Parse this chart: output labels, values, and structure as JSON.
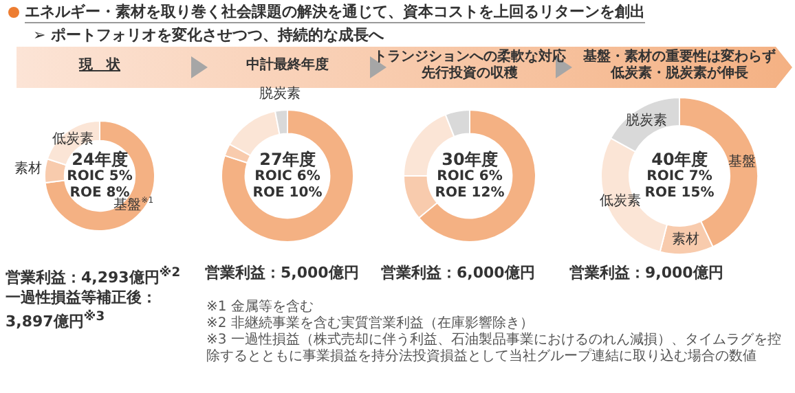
{
  "chart_data": [
    {
      "type": "other",
      "title": "エネルギー・素材を取り巻く社会課題の解決を通じて、資本コストを上回るリターンを創出",
      "subtitle": "➢ ポートフォリオを変化させつつ、持続的な成長へ",
      "annotations": [
        "※1 金属等を含む",
        "※2 非継続事業を含む実質営業利益（在庫影響除き）",
        "※3 一過性損益（株式売却に伴う利益、石油製品事業におけるのれん減損）、タイムラグを控除するとともに事業損益を持分法投資損益として当社グループ連結に取り込む場合の数値"
      ]
    },
    {
      "type": "donut",
      "title": "24年度",
      "subtitle": "現　状",
      "categories": [
        "基盤$^{※1}$",
        "素材",
        "低炭素"
      ],
      "values": [
        73,
        7,
        20
      ],
      "colors": [
        "#f4b183",
        "#f8cbad",
        "#fbe5d6"
      ],
      "annotations": [
        "ROIC 5%",
        "ROE 8%",
        "営業利益：4,293億円$^{※2}$",
        "一過性損益等補正後：3,897億円$^{※3}$"
      ]
    },
    {
      "type": "donut",
      "title": "27年度",
      "subtitle": "中計最終年度",
      "categories": [
        null,
        null,
        null,
        "脱炭素"
      ],
      "values": [
        80,
        3,
        14,
        3
      ],
      "colors": [
        "#f4b183",
        "#f8cbad",
        "#fbe5d6",
        "#d9d9d9"
      ],
      "annotations": [
        "ROIC 6%",
        "ROE 10%",
        "営業利益：5,000億円"
      ]
    },
    {
      "type": "donut",
      "title": "30年度",
      "subtitle": "トランジションへの柔軟な対応先行投資の収穫",
      "categories": [
        null,
        null,
        null,
        null
      ],
      "values": [
        64,
        11,
        19,
        6
      ],
      "colors": [
        "#f4b183",
        "#f8cbad",
        "#fbe5d6",
        "#d9d9d9"
      ],
      "annotations": [
        "ROIC 6%",
        "ROE 12%",
        "営業利益：6,000億円"
      ]
    },
    {
      "type": "donut",
      "title": "40年度",
      "subtitle": "基盤・素材の重要性は変わらず低炭素・脱炭素が伸長",
      "categories": [
        "基盤",
        "素材",
        "低炭素",
        "脱炭素"
      ],
      "values": [
        43,
        11,
        29,
        17
      ],
      "colors": [
        "#f4b183",
        "#f8cbad",
        "#fbe5d6",
        "#d9d9d9"
      ],
      "annotations": [
        "ROIC 7%",
        "ROE 15%",
        "営業利益：9,000億円"
      ]
    }
  ]
}
